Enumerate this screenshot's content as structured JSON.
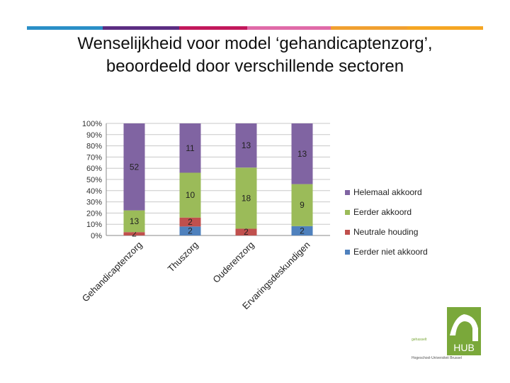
{
  "slide": {
    "title_line1": "Wenselijkheid voor model ‘gehandicaptenzorg’,",
    "title_line2": "beoordeeld door verschillende sectoren",
    "accent_bar_colors": [
      "#2a8fc7",
      "#5b2d82",
      "#c2185b",
      "#e06aa8",
      "#f0a030",
      "#f5a623"
    ]
  },
  "logo": {
    "text": "HUB",
    "tagline_line1": "gehasselt",
    "tagline_line2": "Hogeschool-Universiteit Brussel",
    "color": "#7aa83a"
  },
  "chart_data": {
    "type": "bar",
    "stacked": true,
    "percent_stacked": true,
    "categories": [
      "Gehandicaptenzorg",
      "Thuszorg",
      "Ouderenzorg",
      "Ervaringsdeskundigen"
    ],
    "series": [
      {
        "name": "Eerder niet akkoord",
        "color": "#4f81bd",
        "values": [
          0,
          2,
          0,
          2
        ]
      },
      {
        "name": "Neutrale houding",
        "color": "#c0504d",
        "values": [
          2,
          2,
          2,
          0
        ]
      },
      {
        "name": "Eerder akkoord",
        "color": "#9bbb59",
        "values": [
          13,
          10,
          18,
          9
        ]
      },
      {
        "name": "Helemaal akkoord",
        "color": "#8064a2",
        "values": [
          52,
          11,
          13,
          13
        ]
      }
    ],
    "data_labels": [
      [
        "",
        "2",
        "",
        "2"
      ],
      [
        "2",
        "2",
        "2",
        ""
      ],
      [
        "13",
        "10",
        "18",
        "9"
      ],
      [
        "52",
        "11",
        "13",
        "13"
      ]
    ],
    "y_ticks": [
      "0%",
      "10%",
      "20%",
      "30%",
      "40%",
      "50%",
      "60%",
      "70%",
      "80%",
      "90%",
      "100%"
    ],
    "ylim": [
      0,
      100
    ],
    "grid": true,
    "legend": {
      "position": "right",
      "order": [
        "Helemaal akkoord",
        "Eerder akkoord",
        "Neutrale houding",
        "Eerder niet akkoord"
      ]
    }
  }
}
